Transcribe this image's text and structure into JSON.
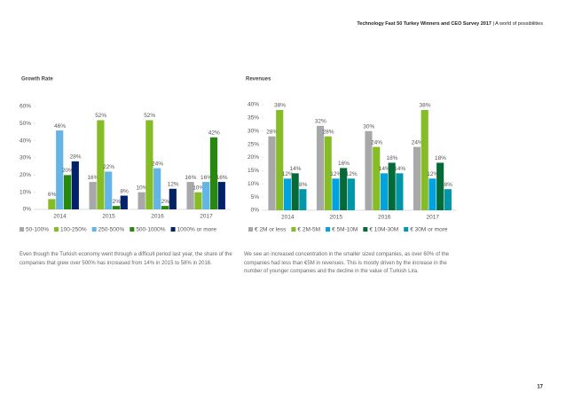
{
  "header": {
    "title": "Technology Fast 50 Turkey Winners and CEO Survey 2017",
    "subtitle": "| A world of possibilities"
  },
  "chart_data": [
    {
      "type": "bar",
      "title": "Growth Rate",
      "categories": [
        "2014",
        "2015",
        "2016",
        "2017"
      ],
      "series": [
        {
          "name": "50-100%",
          "color": "#a7a8aa",
          "values": [
            null,
            16,
            10,
            16
          ],
          "value_labels": [
            null,
            "16%",
            "10%",
            "16%"
          ]
        },
        {
          "name": "100-250%",
          "color": "#86bc25",
          "values": [
            6,
            52,
            52,
            10
          ],
          "value_labels": [
            "6%",
            "52%",
            "52%",
            "10%"
          ]
        },
        {
          "name": "250-500%",
          "color": "#62b5e5",
          "values": [
            46,
            22,
            24,
            16
          ],
          "value_labels": [
            "46%",
            "22%",
            "24%",
            "16%"
          ]
        },
        {
          "name": "500-1000%",
          "color": "#26890d",
          "values": [
            20,
            2,
            2,
            42
          ],
          "value_labels": [
            "20%",
            "2%",
            "2%",
            "42%"
          ]
        },
        {
          "name": "1000% or more",
          "color": "#012169",
          "values": [
            28,
            8,
            12,
            16
          ],
          "value_labels": [
            "28%",
            "8%",
            "12%",
            "16%"
          ]
        }
      ],
      "ylim": [
        0,
        60
      ],
      "yticks": [
        {
          "value": 0,
          "label": "0%"
        },
        {
          "value": 10,
          "label": "10%"
        },
        {
          "value": 20,
          "label": "20%"
        },
        {
          "value": 30,
          "label": "30%"
        },
        {
          "value": 40,
          "label": "40%"
        },
        {
          "value": 50,
          "label": "50%"
        },
        {
          "value": 60,
          "label": "60%"
        }
      ]
    },
    {
      "type": "bar",
      "title": "Revenues",
      "categories": [
        "2014",
        "2015",
        "2016",
        "2017"
      ],
      "series": [
        {
          "name": "€ 2M or less",
          "color": "#a7a8aa",
          "values": [
            28,
            32,
            30,
            24
          ],
          "value_labels": [
            "28%",
            "32%",
            "30%",
            "24%"
          ]
        },
        {
          "name": "€ 2M-5M",
          "color": "#86bc25",
          "values": [
            38,
            28,
            24,
            38
          ],
          "value_labels": [
            "38%",
            "28%",
            "24%",
            "38%"
          ]
        },
        {
          "name": "€ 5M-10M",
          "color": "#00a3e0",
          "values": [
            12,
            12,
            14,
            12
          ],
          "value_labels": [
            "12%",
            "12%",
            "14%",
            "12%"
          ]
        },
        {
          "name": "€ 10M-30M",
          "color": "#046a38",
          "values": [
            14,
            16,
            18,
            18
          ],
          "value_labels": [
            "14%",
            "16%",
            "18%",
            "18%"
          ]
        },
        {
          "name": "€ 30M or more",
          "color": "#0097a9",
          "values": [
            8,
            12,
            14,
            8
          ],
          "value_labels": [
            "8%",
            "12%",
            "14%",
            "8%"
          ]
        }
      ],
      "ylim": [
        0,
        40
      ],
      "yticks": [
        {
          "value": 0,
          "label": "0%"
        },
        {
          "value": 5,
          "label": "5%"
        },
        {
          "value": 10,
          "label": "10%"
        },
        {
          "value": 15,
          "label": "15%"
        },
        {
          "value": 20,
          "label": "20%"
        },
        {
          "value": 25,
          "label": "25%"
        },
        {
          "value": 30,
          "label": "30%"
        },
        {
          "value": 35,
          "label": "35%"
        },
        {
          "value": 40,
          "label": "40%"
        }
      ]
    }
  ],
  "paragraphs": [
    "Even though the Turkish economy went through a difficult period last year, the share of the companies that grew over 500% has increased from 14% in 2015 to 58% in 2016.",
    "We see an increased concentration in the smaller sized companies, as over 60% of the companies had less than €5M in revenues. This is mostly driven by the increase in the number of younger companies and the decline in the value of Turkish Lira."
  ],
  "page_number": "17"
}
